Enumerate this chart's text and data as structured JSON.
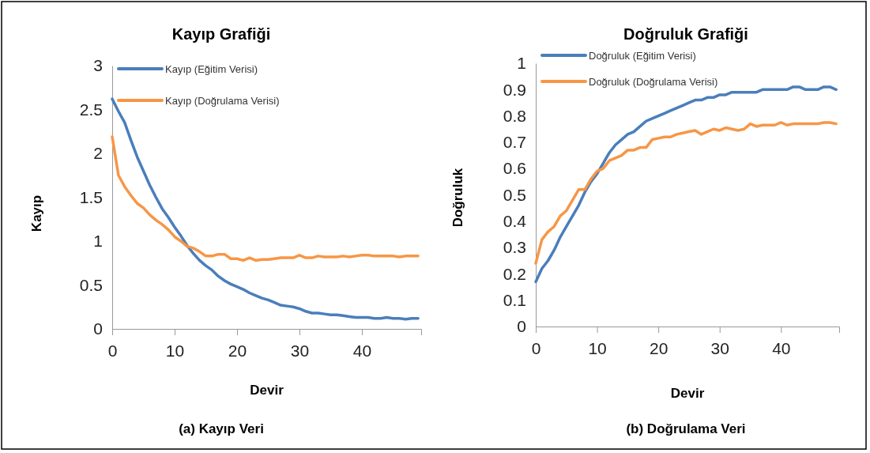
{
  "chart_data": [
    {
      "type": "line",
      "title": "Kayıp Grafiği",
      "xlabel": "Devir",
      "ylabel": "Kayıp",
      "annotations": [
        "(a) Kayıp Veri"
      ],
      "x": [
        0,
        1,
        2,
        3,
        4,
        5,
        6,
        7,
        8,
        9,
        10,
        11,
        12,
        13,
        14,
        15,
        16,
        17,
        18,
        19,
        20,
        21,
        22,
        23,
        24,
        25,
        26,
        27,
        28,
        29,
        30,
        31,
        32,
        33,
        34,
        35,
        36,
        37,
        38,
        39,
        40,
        41,
        42,
        43,
        44,
        45,
        46,
        47,
        48,
        49
      ],
      "series": [
        {
          "name": "Kayıp (Eğitim Verisi)",
          "color": "#4a7ebb",
          "values": [
            2.62,
            2.48,
            2.35,
            2.15,
            1.96,
            1.8,
            1.64,
            1.5,
            1.37,
            1.27,
            1.16,
            1.06,
            0.95,
            0.86,
            0.78,
            0.72,
            0.67,
            0.6,
            0.55,
            0.51,
            0.48,
            0.45,
            0.41,
            0.38,
            0.35,
            0.33,
            0.3,
            0.27,
            0.26,
            0.25,
            0.23,
            0.2,
            0.18,
            0.18,
            0.17,
            0.16,
            0.16,
            0.15,
            0.14,
            0.13,
            0.13,
            0.13,
            0.12,
            0.12,
            0.13,
            0.12,
            0.12,
            0.11,
            0.12,
            0.12
          ]
        },
        {
          "name": "Kayıp (Doğrulama Verisi)",
          "color": "#f79646",
          "values": [
            2.19,
            1.75,
            1.62,
            1.52,
            1.43,
            1.38,
            1.3,
            1.24,
            1.19,
            1.13,
            1.05,
            1.0,
            0.94,
            0.92,
            0.88,
            0.83,
            0.83,
            0.85,
            0.85,
            0.8,
            0.8,
            0.78,
            0.81,
            0.78,
            0.79,
            0.79,
            0.8,
            0.81,
            0.81,
            0.81,
            0.84,
            0.81,
            0.81,
            0.83,
            0.82,
            0.82,
            0.82,
            0.83,
            0.82,
            0.83,
            0.84,
            0.84,
            0.83,
            0.83,
            0.83,
            0.83,
            0.82,
            0.83,
            0.83,
            0.83
          ]
        }
      ],
      "xlim": [
        0,
        49.5
      ],
      "xticks": [
        0,
        10,
        20,
        30,
        40
      ],
      "ylim": [
        0,
        3
      ],
      "yticks": [
        0,
        0.5,
        1,
        1.5,
        2,
        2.5,
        3
      ],
      "grid": false,
      "legend": "top left",
      "marker": "none",
      "line_style": "solid"
    },
    {
      "type": "line",
      "title": "Doğruluk Grafiği",
      "xlabel": "Devir",
      "ylabel": "Doğruluk",
      "annotations": [
        "(b) Doğrulama Veri"
      ],
      "x": [
        0,
        1,
        2,
        3,
        4,
        5,
        6,
        7,
        8,
        9,
        10,
        11,
        12,
        13,
        14,
        15,
        16,
        17,
        18,
        19,
        20,
        21,
        22,
        23,
        24,
        25,
        26,
        27,
        28,
        29,
        30,
        31,
        32,
        33,
        34,
        35,
        36,
        37,
        38,
        39,
        40,
        41,
        42,
        43,
        44,
        45,
        46,
        47,
        48,
        49
      ],
      "series": [
        {
          "name": "Doğruluk (Eğitim Verisi)",
          "color": "#4a7ebb",
          "values": [
            0.17,
            0.22,
            0.25,
            0.29,
            0.34,
            0.38,
            0.42,
            0.46,
            0.51,
            0.55,
            0.58,
            0.62,
            0.66,
            0.69,
            0.71,
            0.73,
            0.74,
            0.76,
            0.78,
            0.79,
            0.8,
            0.81,
            0.82,
            0.83,
            0.84,
            0.85,
            0.86,
            0.86,
            0.87,
            0.87,
            0.88,
            0.88,
            0.89,
            0.89,
            0.89,
            0.89,
            0.89,
            0.9,
            0.9,
            0.9,
            0.9,
            0.9,
            0.91,
            0.91,
            0.9,
            0.9,
            0.9,
            0.91,
            0.91,
            0.9
          ]
        },
        {
          "name": "Doğruluk (Doğrulama Verisi)",
          "color": "#f79646",
          "values": [
            0.24,
            0.33,
            0.36,
            0.38,
            0.42,
            0.44,
            0.48,
            0.52,
            0.52,
            0.56,
            0.59,
            0.6,
            0.63,
            0.64,
            0.65,
            0.67,
            0.67,
            0.68,
            0.68,
            0.71,
            0.715,
            0.72,
            0.72,
            0.73,
            0.735,
            0.74,
            0.745,
            0.73,
            0.74,
            0.75,
            0.745,
            0.755,
            0.75,
            0.745,
            0.75,
            0.77,
            0.76,
            0.765,
            0.765,
            0.765,
            0.775,
            0.765,
            0.77,
            0.77,
            0.77,
            0.77,
            0.77,
            0.775,
            0.775,
            0.77
          ]
        }
      ],
      "xlim": [
        0,
        49.5
      ],
      "xticks": [
        0,
        10,
        20,
        30,
        40
      ],
      "ylim": [
        0,
        1
      ],
      "yticks": [
        0,
        0.1,
        0.2,
        0.3,
        0.4,
        0.5,
        0.6,
        0.7,
        0.8,
        0.9,
        1
      ],
      "grid": false,
      "legend": "top left",
      "marker": "none",
      "line_style": "solid"
    }
  ]
}
